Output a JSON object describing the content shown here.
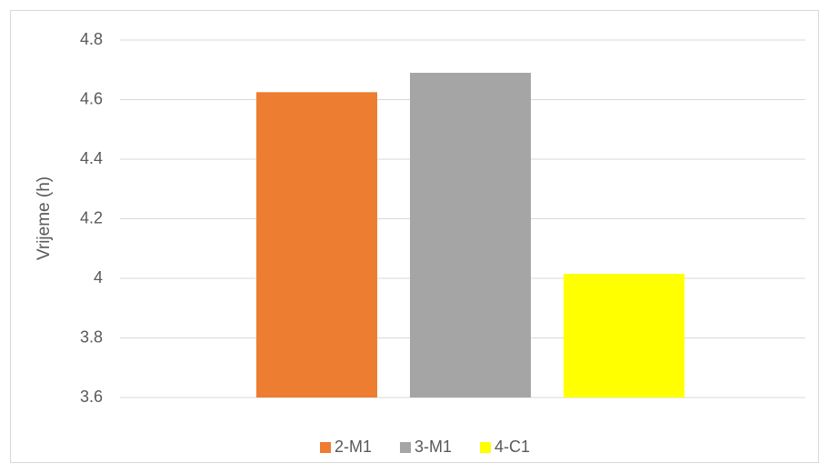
{
  "chart_data": {
    "type": "bar",
    "title": "",
    "xlabel": "",
    "ylabel": "Vrijeme (h)",
    "ylim": [
      3.6,
      4.8
    ],
    "yticks": [
      "3.6",
      "3.8",
      "4",
      "4.2",
      "4.4",
      "4.6",
      "4.8"
    ],
    "grid": true,
    "legend_position": "bottom",
    "series": [
      {
        "name": "2-M1",
        "value": 4.625,
        "color": "#ED7D31"
      },
      {
        "name": "3-M1",
        "value": 4.69,
        "color": "#A5A5A5"
      },
      {
        "name": "4-C1",
        "value": 4.015,
        "color": "#FFFF00"
      }
    ]
  }
}
